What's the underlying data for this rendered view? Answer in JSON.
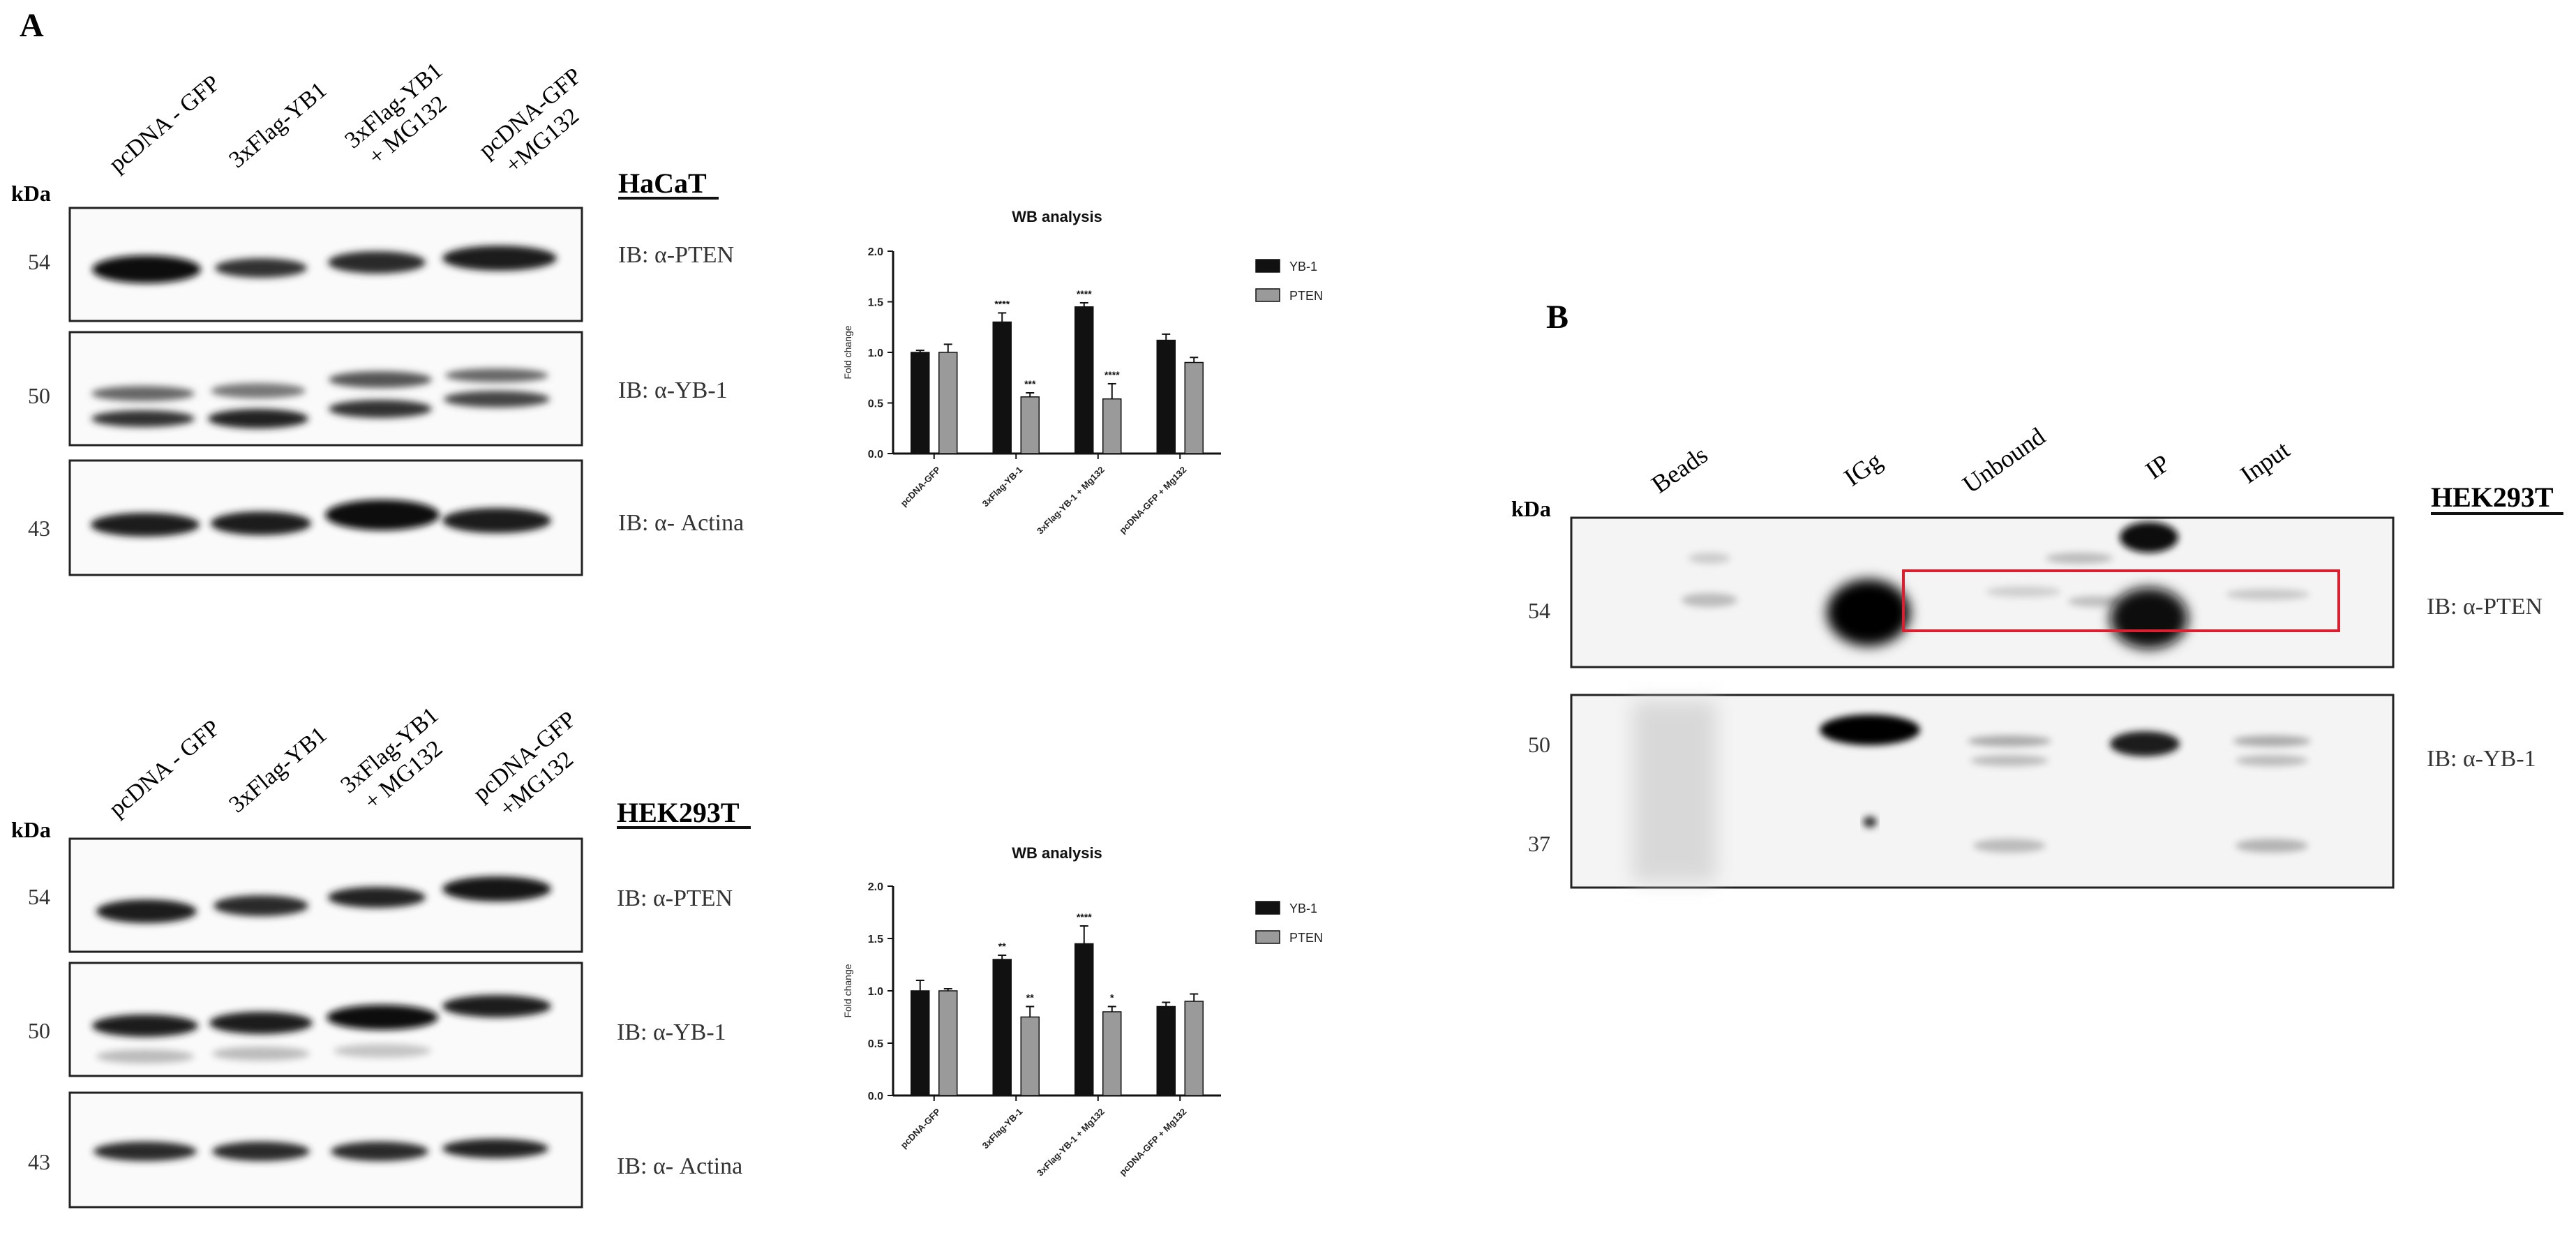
{
  "panel_a": {
    "label": "A",
    "haCaT": {
      "cell_line": "HaCaT",
      "lanes": [
        "pcDNA - GFP",
        "3xFlag-YB1",
        "3xFlag-YB1",
        "+ MG132",
        "pcDNA-GFP",
        "+MG132"
      ],
      "kda": "kDa",
      "markers": [
        "54",
        "50",
        "43"
      ],
      "ib_labels": [
        "IB: α-PTEN",
        "IB: α-YB-1",
        "IB: α- Actina"
      ]
    },
    "hek": {
      "cell_line": "HEK293T",
      "lanes": [
        "pcDNA - GFP",
        "3xFlag-YB1",
        "3xFlag-YB1",
        "+ MG132",
        "pcDNA-GFP",
        "+MG132"
      ],
      "kda": "kDa",
      "markers": [
        "54",
        "50",
        "43"
      ],
      "ib_labels": [
        "IB: α-PTEN",
        "IB: α-YB-1",
        "IB: α- Actina"
      ]
    }
  },
  "panel_b": {
    "label": "B",
    "cell_line": "HEK293T",
    "lanes": [
      "Beads",
      "IGg",
      "Unbound",
      "IP",
      "Input"
    ],
    "kda": "kDa",
    "markers": [
      "54",
      "50",
      "37"
    ],
    "ib_labels": [
      "IB: α-PTEN",
      "IB: α-YB-1"
    ]
  },
  "chart_data": [
    {
      "type": "bar",
      "title": "WB analysis",
      "ylabel": "Fold change",
      "xlabel": "",
      "ylim": [
        0,
        2.0
      ],
      "yticks": [
        "0.0",
        "0.5",
        "1.0",
        "1.5",
        "2.0"
      ],
      "categories": [
        "pcDNA-GFP",
        "3xFlag-YB-1",
        "3xFlag-YB-1 + Mg132",
        "pcDNA-GFP + Mg132"
      ],
      "series": [
        {
          "name": "YB-1",
          "color": "#111111",
          "values": [
            1.0,
            1.3,
            1.45,
            1.12
          ],
          "errors": [
            0.02,
            0.09,
            0.04,
            0.06
          ],
          "significance": [
            "",
            "****",
            "****",
            ""
          ]
        },
        {
          "name": "PTEN",
          "color": "#9a9a9a",
          "values": [
            1.0,
            0.56,
            0.54,
            0.9
          ],
          "errors": [
            0.08,
            0.04,
            0.15,
            0.05
          ],
          "significance": [
            "",
            "***",
            "****",
            ""
          ]
        }
      ],
      "legend": "top-right",
      "grid": false
    },
    {
      "type": "bar",
      "title": "WB analysis",
      "ylabel": "Fold change",
      "xlabel": "",
      "ylim": [
        0,
        2.0
      ],
      "yticks": [
        "0.0",
        "0.5",
        "1.0",
        "1.5",
        "2.0"
      ],
      "categories": [
        "pcDNA-GFP",
        "3xFlag-YB-1",
        "3xFlag-YB-1 + Mg132",
        "pcDNA-GFP + Mg132"
      ],
      "series": [
        {
          "name": "YB-1",
          "color": "#111111",
          "values": [
            1.0,
            1.3,
            1.45,
            0.85
          ],
          "errors": [
            0.1,
            0.04,
            0.17,
            0.04
          ],
          "significance": [
            "",
            "**",
            "****",
            ""
          ]
        },
        {
          "name": "PTEN",
          "color": "#9a9a9a",
          "values": [
            1.0,
            0.75,
            0.8,
            0.9
          ],
          "errors": [
            0.02,
            0.1,
            0.05,
            0.07
          ],
          "significance": [
            "",
            "**",
            "*",
            ""
          ]
        }
      ],
      "legend": "top-right",
      "grid": false
    }
  ]
}
